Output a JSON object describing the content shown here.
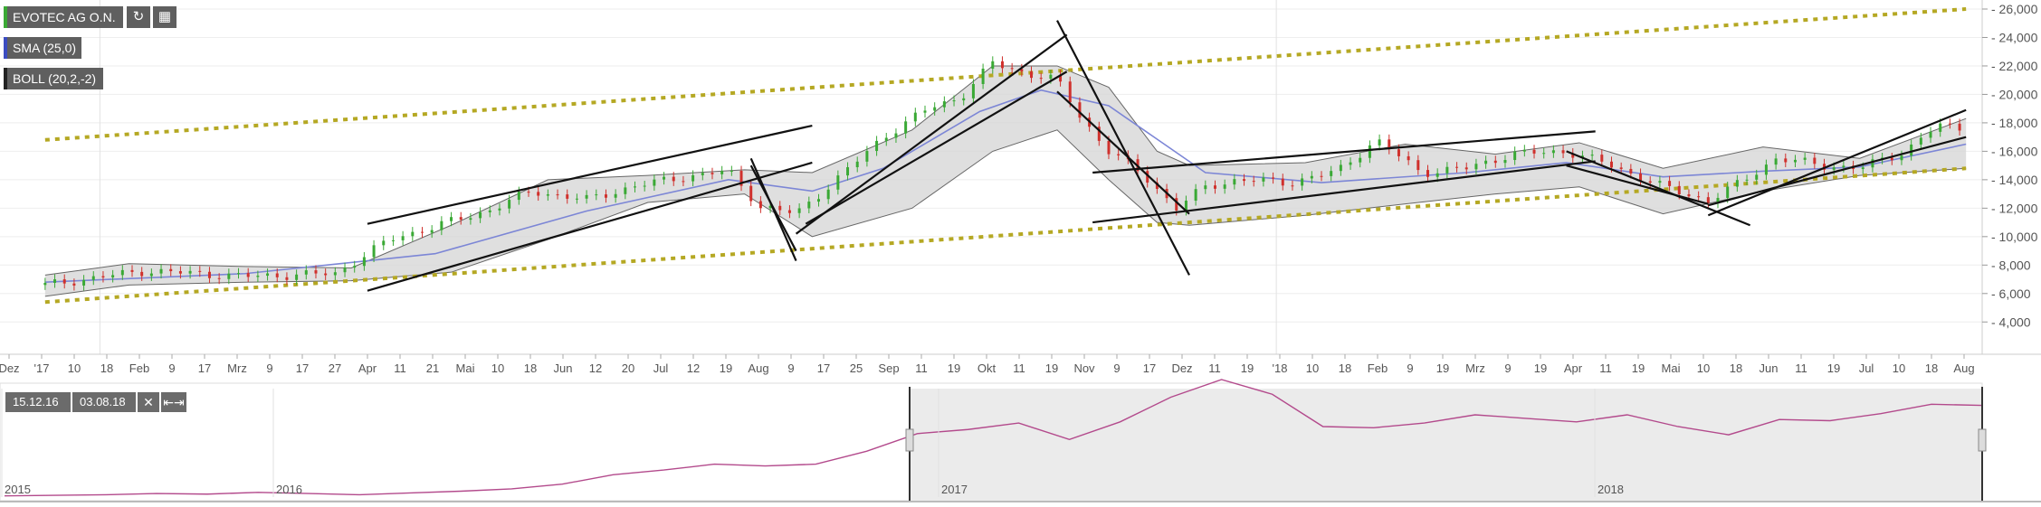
{
  "legend": {
    "instrument": {
      "label": "EVOTEC AG O.N.",
      "color": "#3aa935"
    },
    "sma": {
      "label": "SMA (25,0)",
      "color": "#3b4cc0"
    },
    "boll": {
      "label": "BOLL (20,2,-2)",
      "color": "#222222"
    },
    "refresh_icon": "refresh-icon",
    "calendar_icon": "calendar-icon"
  },
  "navigator": {
    "from_date": "15.12.16",
    "to_date": "03.08.18",
    "close_icon": "close-icon",
    "expand_icon": "expand-icon",
    "year_labels": [
      "2015",
      "2016",
      "2017",
      "2018"
    ]
  },
  "chart_data": {
    "type": "line",
    "title": "",
    "xlabel": "",
    "ylabel": "",
    "ylim": [
      3000,
      26000
    ],
    "y_ticks": [
      "4,000",
      "6,000",
      "8,000",
      "10,000",
      "12,000",
      "14,000",
      "16,000",
      "18,000",
      "20,000",
      "22,000",
      "24,000",
      "26,000"
    ],
    "x_ticks": [
      "Dez",
      "'17",
      "10",
      "18",
      "Feb",
      "9",
      "17",
      "Mrz",
      "9",
      "17",
      "27",
      "Apr",
      "11",
      "21",
      "Mai",
      "10",
      "18",
      "Jun",
      "12",
      "20",
      "Jul",
      "12",
      "19",
      "Aug",
      "9",
      "17",
      "25",
      "Sep",
      "11",
      "19",
      "Okt",
      "11",
      "19",
      "Nov",
      "9",
      "17",
      "Dez",
      "11",
      "19",
      "'18",
      "10",
      "18",
      "Feb",
      "9",
      "19",
      "Mrz",
      "9",
      "19",
      "Apr",
      "11",
      "19",
      "Mai",
      "10",
      "18",
      "Jun",
      "11",
      "19",
      "Jul",
      "10",
      "18",
      "Aug"
    ],
    "grid": true,
    "price_series": {
      "name": "EVOTEC AG O.N.",
      "dates": [
        "2016-12-15",
        "2017-01-15",
        "2017-02-15",
        "2017-03-15",
        "2017-04-01",
        "2017-05-01",
        "2017-05-15",
        "2017-06-01",
        "2017-06-15",
        "2017-07-01",
        "2017-07-15",
        "2017-07-25",
        "2017-08-05",
        "2017-08-20",
        "2017-09-01",
        "2017-09-15",
        "2017-09-25",
        "2017-10-05",
        "2017-10-15",
        "2017-10-25",
        "2017-11-01",
        "2017-11-10",
        "2017-11-20",
        "2017-12-01",
        "2017-12-10",
        "2017-12-20",
        "2018-01-05",
        "2018-01-20",
        "2018-02-01",
        "2018-02-15",
        "2018-03-01",
        "2018-03-15",
        "2018-04-01",
        "2018-04-15",
        "2018-05-01",
        "2018-05-15",
        "2018-05-25",
        "2018-06-05",
        "2018-06-20",
        "2018-07-01",
        "2018-07-15",
        "2018-07-25",
        "2018-08-03"
      ],
      "values": [
        6.6,
        7.6,
        7.2,
        7.4,
        9.8,
        11.8,
        13.2,
        12.6,
        13.5,
        14.2,
        14.6,
        12.1,
        11.6,
        14.5,
        17.0,
        19.0,
        19.8,
        22.2,
        21.5,
        21.0,
        18.5,
        16.0,
        14.5,
        12.0,
        13.5,
        14.0,
        13.8,
        14.6,
        16.8,
        14.5,
        14.8,
        15.8,
        16.0,
        15.0,
        13.5,
        12.5,
        13.8,
        15.5,
        15.0,
        14.8,
        16.0,
        17.8,
        17.6
      ]
    },
    "sma_series": {
      "name": "SMA (25,0)",
      "dates": [
        "2016-12-15",
        "2017-02-15",
        "2017-04-15",
        "2017-06-01",
        "2017-07-15",
        "2017-08-10",
        "2017-09-01",
        "2017-10-01",
        "2017-10-20",
        "2017-11-10",
        "2017-12-10",
        "2018-01-15",
        "2018-03-01",
        "2018-04-01",
        "2018-05-01",
        "2018-06-01",
        "2018-07-01",
        "2018-08-03"
      ],
      "values": [
        6.8,
        7.4,
        8.8,
        11.8,
        14.0,
        13.2,
        14.8,
        18.8,
        20.3,
        19.2,
        14.5,
        13.8,
        14.5,
        15.2,
        14.2,
        14.6,
        14.9,
        16.5
      ]
    },
    "bollinger_upper": {
      "dates": [
        "2016-12-15",
        "2017-01-10",
        "2017-02-15",
        "2017-03-20",
        "2017-04-20",
        "2017-05-20",
        "2017-06-20",
        "2017-07-20",
        "2017-08-10",
        "2017-09-10",
        "2017-10-05",
        "2017-10-25",
        "2017-11-10",
        "2017-11-25",
        "2017-12-05",
        "2018-01-10",
        "2018-02-10",
        "2018-03-10",
        "2018-04-05",
        "2018-05-01",
        "2018-06-01",
        "2018-07-01",
        "2018-08-03"
      ],
      "values": [
        7.3,
        8.1,
        7.9,
        7.8,
        10.8,
        14.0,
        14.3,
        14.7,
        14.5,
        17.5,
        22.0,
        22.0,
        20.5,
        16.0,
        15.0,
        15.2,
        16.5,
        15.8,
        16.6,
        14.8,
        16.3,
        15.5,
        18.3
      ]
    },
    "bollinger_lower": {
      "dates": [
        "2016-12-15",
        "2017-01-10",
        "2017-02-15",
        "2017-03-20",
        "2017-04-20",
        "2017-05-20",
        "2017-06-20",
        "2017-07-20",
        "2017-08-10",
        "2017-09-10",
        "2017-10-05",
        "2017-10-25",
        "2017-11-10",
        "2017-11-25",
        "2017-12-05",
        "2018-01-10",
        "2018-02-10",
        "2018-03-10",
        "2018-04-05",
        "2018-05-01",
        "2018-06-01",
        "2018-07-01",
        "2018-08-03"
      ],
      "values": [
        5.8,
        6.6,
        6.8,
        6.9,
        7.5,
        9.8,
        12.4,
        13.0,
        10.0,
        12.0,
        16.0,
        17.5,
        14.0,
        11.0,
        10.8,
        11.5,
        12.3,
        13.0,
        13.5,
        11.6,
        13.2,
        14.3,
        14.8
      ]
    },
    "trend_channel": {
      "color": "#b5a823",
      "upper": {
        "from": [
          "2016-12-15",
          16.8
        ],
        "to": [
          "2018-08-03",
          26.0
        ]
      },
      "middle": {
        "from": [
          "2017-03-25",
          7.0
        ],
        "to": [
          "2018-08-03",
          14.8
        ]
      },
      "lower": {
        "from": [
          "2016-12-15",
          5.4
        ],
        "to": [
          "2018-08-03",
          14.8
        ]
      }
    }
  },
  "navigator_chart": {
    "series_color": "#b34a8c",
    "values": [
      2.2,
      2.3,
      2.4,
      2.6,
      2.5,
      2.8,
      2.6,
      2.4,
      2.7,
      3.0,
      3.4,
      4.2,
      5.8,
      6.6,
      7.6,
      7.3,
      7.6,
      9.8,
      12.8,
      13.5,
      14.6,
      11.8,
      14.8,
      19.0,
      22.0,
      19.5,
      14.0,
      13.8,
      14.6,
      16.0,
      15.4,
      14.8,
      16.0,
      14.0,
      12.6,
      15.2,
      15.0,
      16.2,
      17.8,
      17.6
    ]
  }
}
